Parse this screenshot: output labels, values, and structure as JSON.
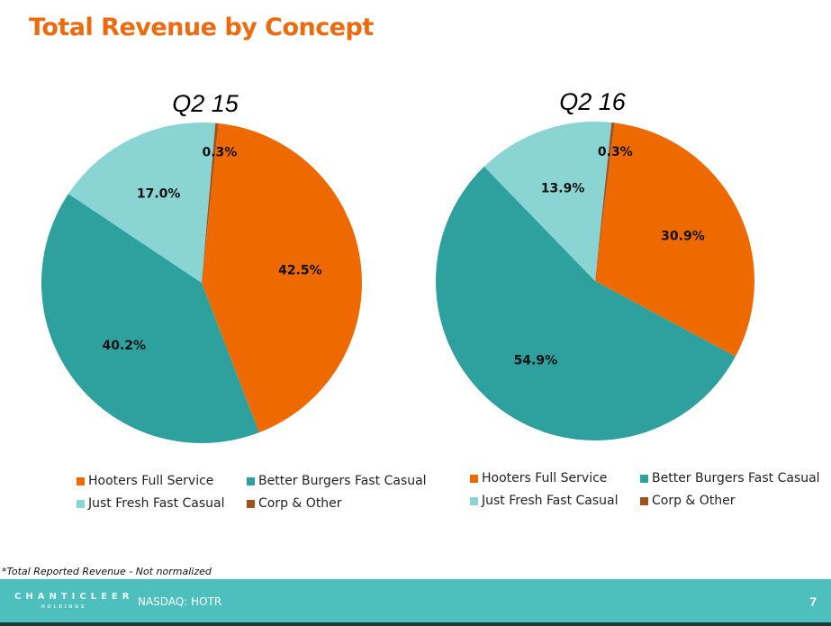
{
  "slide": {
    "title": "Total Revenue by Concept",
    "footnote": "*Total Reported Revenue - Not normalized",
    "footer": {
      "logo_text": "CHANTICLEER",
      "logo_subtext": "HOLDINGS",
      "ticker": "NASDAQ: HOTR",
      "page_number": "7"
    }
  },
  "colors": {
    "title": "#EE6A0F",
    "hooters": "#EE6A00",
    "better_burgers": "#2EA19E",
    "just_fresh": "#8AD5D3",
    "corp_other": "#A0521D",
    "footer_bg": "#4DBFBC"
  },
  "chart_data": [
    {
      "type": "pie",
      "title": "Q2 15",
      "legend": [
        "Hooters Full Service",
        "Better Burgers Fast Casual",
        "Just Fresh Fast Casual",
        "Corp & Other"
      ],
      "legend_position": "bottom",
      "slices": [
        {
          "name": "Hooters Full Service",
          "value": 42.5,
          "label": "42.5%",
          "color": "#EE6A00"
        },
        {
          "name": "Better Burgers Fast Casual",
          "value": 40.2,
          "label": "40.2%",
          "color": "#2EA19E"
        },
        {
          "name": "Just Fresh Fast Casual",
          "value": 17.0,
          "label": "17.0%",
          "color": "#8AD5D3"
        },
        {
          "name": "Corp & Other",
          "value": 0.3,
          "label": "0.3%",
          "color": "#A0521D"
        }
      ]
    },
    {
      "type": "pie",
      "title": "Q2 16",
      "legend": [
        "Hooters Full Service",
        "Better Burgers Fast Casual",
        "Just Fresh Fast Casual",
        "Corp & Other"
      ],
      "legend_position": "bottom",
      "slices": [
        {
          "name": "Hooters Full Service",
          "value": 30.9,
          "label": "30.9%",
          "color": "#EE6A00"
        },
        {
          "name": "Better Burgers Fast Casual",
          "value": 54.9,
          "label": "54.9%",
          "color": "#2EA19E"
        },
        {
          "name": "Just Fresh Fast Casual",
          "value": 13.9,
          "label": "13.9%",
          "color": "#8AD5D3"
        },
        {
          "name": "Corp & Other",
          "value": 0.3,
          "label": "0.3%",
          "color": "#A0521D"
        }
      ]
    }
  ]
}
